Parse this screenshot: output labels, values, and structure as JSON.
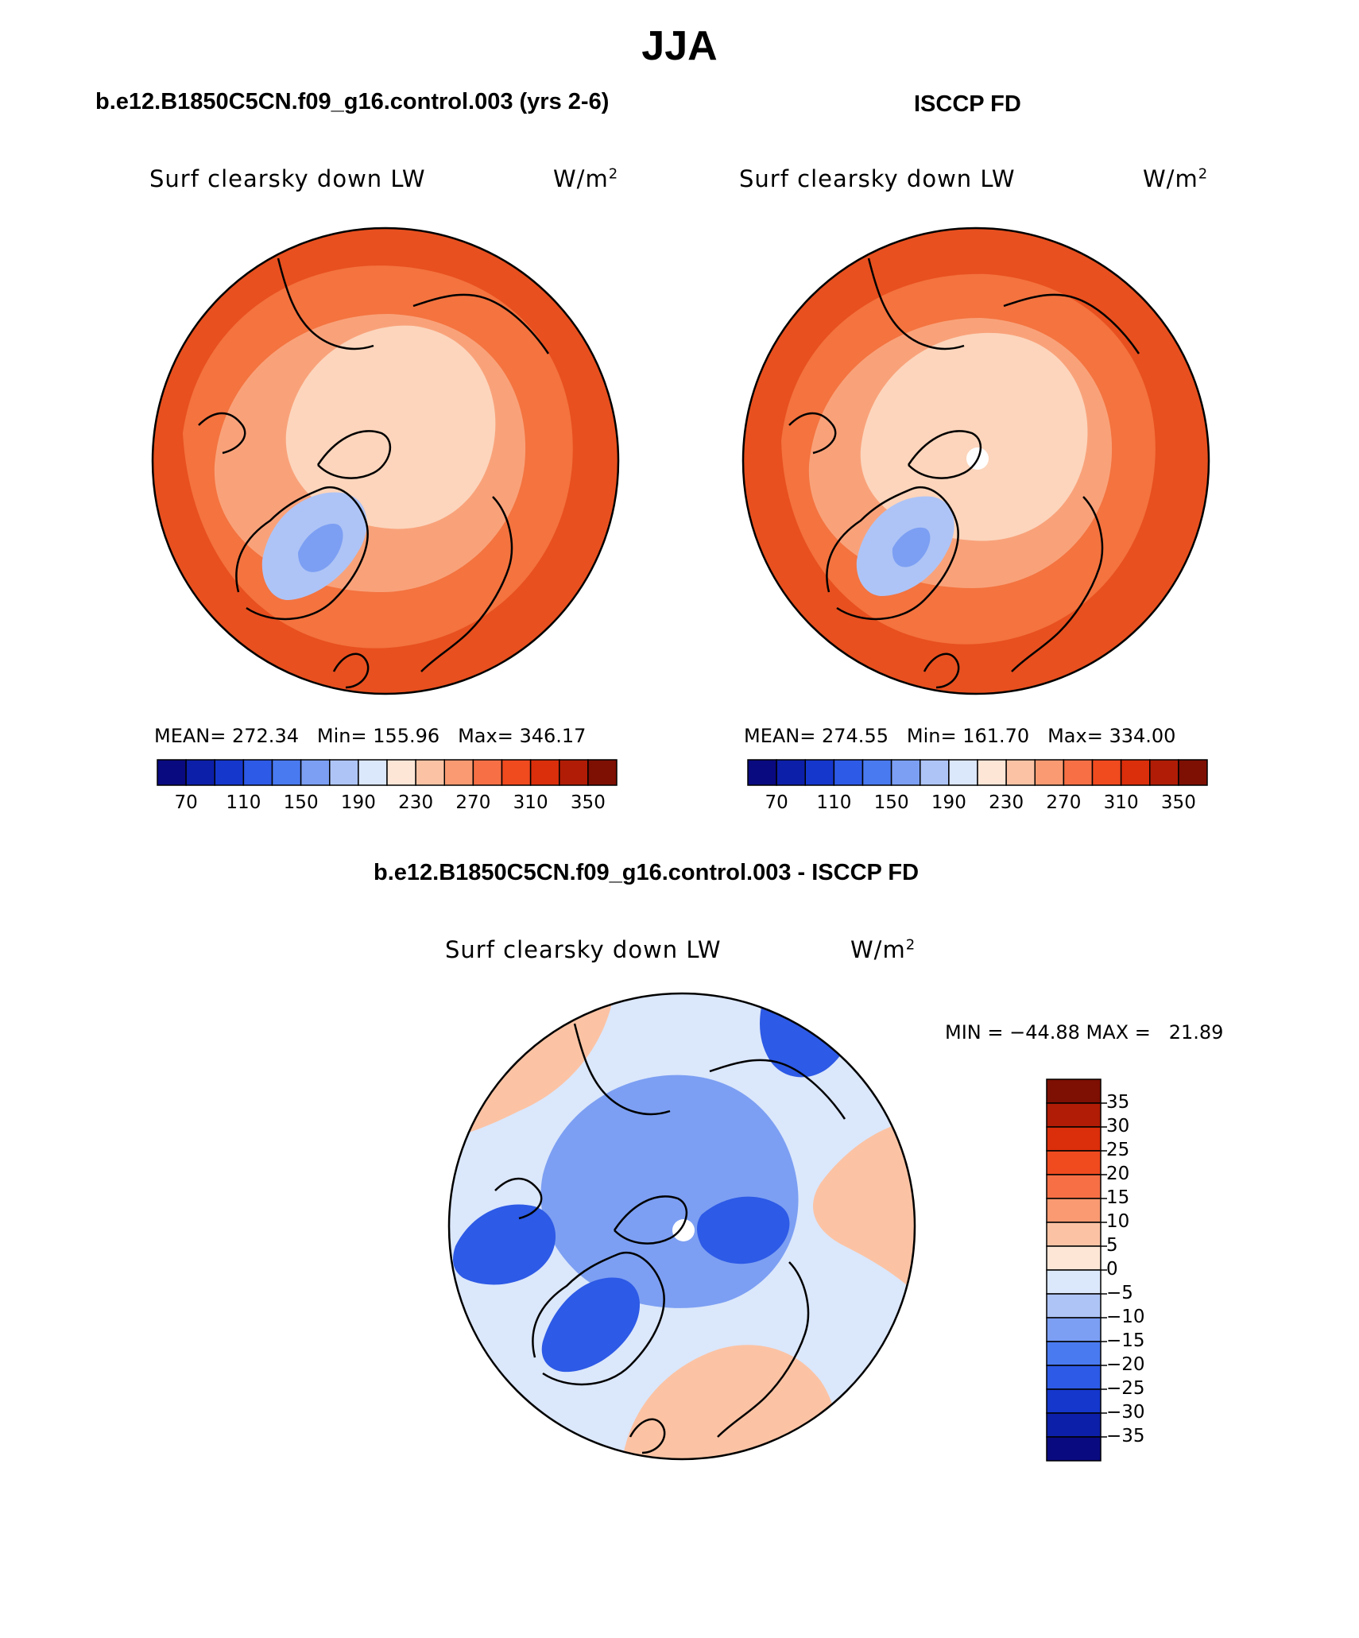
{
  "page": {
    "title": "JJA"
  },
  "panels": {
    "model": {
      "heading": "b.e12.B1850C5CN.f09_g16.control.003 (yrs 2-6)",
      "variable": "Surf clearsky down LW",
      "units_base": "W/m",
      "units_exp": "2",
      "mean_label": "MEAN=",
      "mean": "272.34",
      "min_label": "Min=",
      "min": "155.96",
      "max_label": "Max=",
      "max": "346.17"
    },
    "obs": {
      "heading": "ISCCP FD",
      "variable": "Surf clearsky down LW",
      "units_base": "W/m",
      "units_exp": "2",
      "mean_label": "MEAN=",
      "mean": "274.55",
      "min_label": "Min=",
      "min": "161.70",
      "max_label": "Max=",
      "max": "334.00"
    },
    "diff": {
      "heading": "b.e12.B1850C5CN.f09_g16.control.003 - ISCCP FD",
      "variable": "Surf clearsky down LW",
      "units_base": "W/m",
      "units_exp": "2",
      "minmax_text": "MIN = −44.88 MAX =   21.89"
    }
  },
  "colorbars": {
    "abs_ticks": [
      "70",
      "110",
      "150",
      "190",
      "230",
      "270",
      "310",
      "350"
    ],
    "abs_colors": [
      "#0a0a80",
      "#0c1fa8",
      "#1537cc",
      "#2d5ae6",
      "#4a7af0",
      "#7c9ff3",
      "#aec4f6",
      "#dbe7fb",
      "#fde6d6",
      "#fbc3a4",
      "#f99a72",
      "#f66f45",
      "#f04a1f",
      "#db2e0b",
      "#b01c06",
      "#7e0f03"
    ],
    "diff_ticks": [
      "35",
      "30",
      "25",
      "20",
      "15",
      "10",
      "5",
      "0",
      "−5",
      "−10",
      "−15",
      "−20",
      "−25",
      "−30",
      "−35"
    ],
    "diff_colors": [
      "#7e0f03",
      "#b01c06",
      "#db2e0b",
      "#f04a1f",
      "#f66f45",
      "#f99a72",
      "#fbc3a4",
      "#fde6d6",
      "#dbe7fb",
      "#aec4f6",
      "#7c9ff3",
      "#4a7af0",
      "#2d5ae6",
      "#1537cc",
      "#0c1fa8",
      "#0a0a80"
    ]
  },
  "colors": {
    "outer_ring": "#e8501f",
    "mid_ring": "#f4733f",
    "inner_ring": "#f9a27a",
    "polar_cap": "#fcd5bc",
    "greenland_abs": "#aec4f6",
    "greenland_core": "#7c9ff3",
    "diff_base": "#dbe7fb",
    "diff_ocean": "#7c9ff3",
    "diff_cold": "#2d5ae6",
    "diff_warm": "#fbc3a4"
  }
}
